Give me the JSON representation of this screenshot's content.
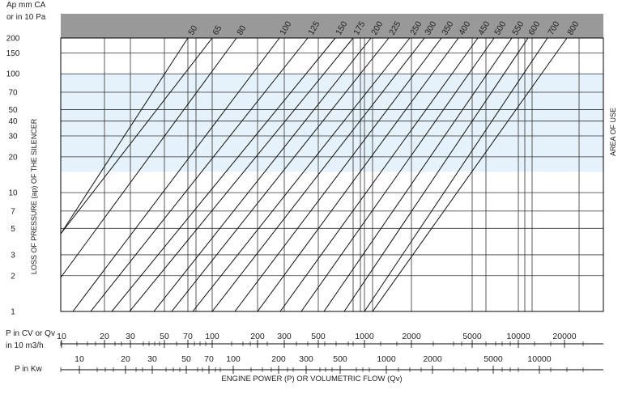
{
  "chart_data": {
    "type": "line",
    "y_unit_label": [
      "Ap mm CA",
      "or in 10 Pa"
    ],
    "ylabel": "LOSS OF PRESSURE (ap) OF THE SILENCER",
    "area_label": "AREA OF USE",
    "area_of_use_y_range": [
      15,
      100
    ],
    "y_scale": "log",
    "ylim": [
      1,
      200
    ],
    "y_ticks": [
      "1",
      "2",
      "3",
      "5",
      "7",
      "10",
      "20",
      "30",
      "40",
      "50",
      "70",
      "100",
      "150",
      "200"
    ],
    "curve_labels": [
      "50",
      "65",
      "80",
      "100",
      "125",
      "150",
      "175",
      "200",
      "225",
      "250",
      "300",
      "350",
      "400",
      "450",
      "500",
      "550",
      "600",
      "700",
      "800"
    ],
    "x1_label": [
      "P in CV or Qv",
      "in 10 m3/h"
    ],
    "x1_ticks": [
      "10",
      "20",
      "30",
      "50",
      "70",
      "100",
      "200",
      "300",
      "500",
      "1000",
      "2000",
      "5000",
      "10000",
      "20000"
    ],
    "x2_label": "P in Kw",
    "x2_ticks": [
      "10",
      "20",
      "30",
      "50",
      "70",
      "100",
      "200",
      "300",
      "500",
      "1000",
      "2000",
      "5000",
      "10000"
    ],
    "xlabel": "ENGINE POWER (P) OR VOLUMETRIC FLOW (Qv)"
  }
}
